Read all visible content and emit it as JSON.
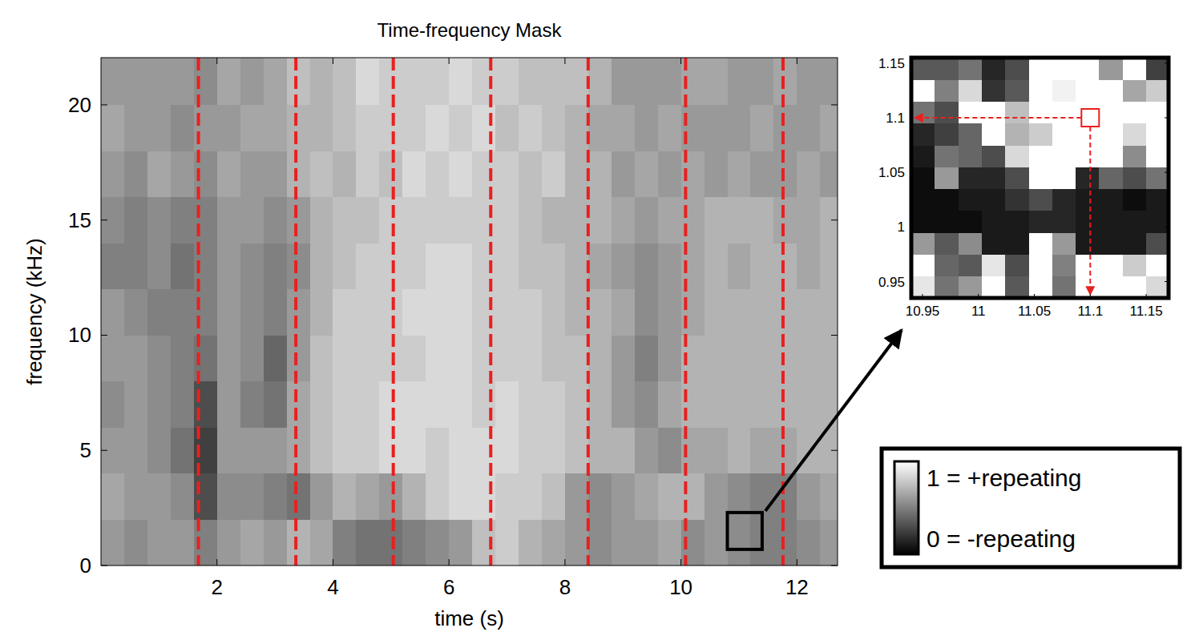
{
  "chart_data": {
    "type": "heatmap",
    "title": "Time-frequency Mask",
    "x_label": "time (s)",
    "y_label": "frequency (kHz)",
    "xlim": [
      0,
      12.7
    ],
    "ylim": [
      0,
      22.05
    ],
    "xticks": [
      2,
      4,
      6,
      8,
      10,
      12
    ],
    "yticks": [
      0,
      5,
      10,
      15,
      20
    ],
    "x_bins": [
      0,
      0.4,
      0.8,
      1.2,
      1.6,
      2,
      2.4,
      2.8,
      3.2,
      3.6,
      4,
      4.4,
      4.8,
      5.2,
      5.6,
      6,
      6.4,
      6.8,
      7.2,
      7.6,
      8,
      8.4,
      8.8,
      9.2,
      9.6,
      10,
      10.4,
      10.8,
      11.2,
      11.6,
      12,
      12.4,
      12.8
    ],
    "y_bins": [
      0,
      2,
      4,
      6,
      8,
      10,
      12,
      14,
      16,
      18,
      20,
      22.05
    ],
    "cells": [
      [
        0.6,
        0.55,
        0.6,
        0.6,
        0.5,
        0.6,
        0.65,
        0.6,
        0.7,
        0.65,
        0.5,
        0.45,
        0.45,
        0.5,
        0.55,
        0.6,
        0.75,
        0.8,
        0.7,
        0.65,
        0.6,
        0.55,
        0.6,
        0.6,
        0.65,
        0.55,
        0.6,
        0.55,
        0.5,
        0.5,
        0.55,
        0.6
      ],
      [
        0.65,
        0.6,
        0.6,
        0.55,
        0.3,
        0.55,
        0.55,
        0.5,
        0.45,
        0.6,
        0.7,
        0.65,
        0.6,
        0.7,
        0.8,
        0.85,
        0.85,
        0.8,
        0.8,
        0.75,
        0.6,
        0.55,
        0.6,
        0.65,
        0.7,
        0.7,
        0.6,
        0.55,
        0.5,
        0.5,
        0.6,
        0.65
      ],
      [
        0.6,
        0.6,
        0.55,
        0.45,
        0.25,
        0.6,
        0.6,
        0.6,
        0.65,
        0.75,
        0.8,
        0.8,
        0.85,
        0.85,
        0.8,
        0.85,
        0.85,
        0.85,
        0.8,
        0.8,
        0.75,
        0.7,
        0.7,
        0.6,
        0.55,
        0.65,
        0.65,
        0.7,
        0.65,
        0.65,
        0.7,
        0.7
      ],
      [
        0.55,
        0.6,
        0.55,
        0.5,
        0.3,
        0.6,
        0.5,
        0.45,
        0.65,
        0.75,
        0.8,
        0.8,
        0.85,
        0.85,
        0.85,
        0.85,
        0.8,
        0.85,
        0.8,
        0.8,
        0.75,
        0.7,
        0.6,
        0.55,
        0.65,
        0.7,
        0.7,
        0.7,
        0.7,
        0.7,
        0.7,
        0.7
      ],
      [
        0.6,
        0.6,
        0.55,
        0.5,
        0.45,
        0.6,
        0.55,
        0.4,
        0.6,
        0.75,
        0.8,
        0.8,
        0.8,
        0.8,
        0.85,
        0.85,
        0.8,
        0.8,
        0.8,
        0.75,
        0.75,
        0.7,
        0.6,
        0.5,
        0.6,
        0.7,
        0.7,
        0.7,
        0.7,
        0.7,
        0.7,
        0.7
      ],
      [
        0.6,
        0.55,
        0.5,
        0.5,
        0.5,
        0.6,
        0.55,
        0.5,
        0.6,
        0.7,
        0.8,
        0.8,
        0.8,
        0.85,
        0.85,
        0.85,
        0.8,
        0.8,
        0.8,
        0.75,
        0.7,
        0.7,
        0.65,
        0.55,
        0.6,
        0.65,
        0.7,
        0.7,
        0.7,
        0.7,
        0.7,
        0.7
      ],
      [
        0.5,
        0.5,
        0.55,
        0.45,
        0.5,
        0.6,
        0.55,
        0.5,
        0.55,
        0.7,
        0.75,
        0.8,
        0.8,
        0.8,
        0.85,
        0.85,
        0.8,
        0.8,
        0.75,
        0.75,
        0.7,
        0.65,
        0.6,
        0.55,
        0.6,
        0.65,
        0.7,
        0.65,
        0.7,
        0.7,
        0.65,
        0.7
      ],
      [
        0.55,
        0.5,
        0.55,
        0.5,
        0.5,
        0.6,
        0.6,
        0.55,
        0.6,
        0.7,
        0.75,
        0.75,
        0.8,
        0.8,
        0.8,
        0.8,
        0.8,
        0.8,
        0.75,
        0.7,
        0.7,
        0.7,
        0.65,
        0.6,
        0.65,
        0.65,
        0.7,
        0.7,
        0.7,
        0.65,
        0.65,
        0.7
      ],
      [
        0.6,
        0.55,
        0.65,
        0.6,
        0.55,
        0.65,
        0.6,
        0.6,
        0.7,
        0.75,
        0.7,
        0.8,
        0.75,
        0.85,
        0.8,
        0.85,
        0.8,
        0.8,
        0.75,
        0.8,
        0.7,
        0.7,
        0.6,
        0.65,
        0.6,
        0.65,
        0.6,
        0.65,
        0.6,
        0.6,
        0.65,
        0.6
      ],
      [
        0.65,
        0.6,
        0.6,
        0.55,
        0.6,
        0.6,
        0.65,
        0.65,
        0.7,
        0.7,
        0.75,
        0.8,
        0.8,
        0.8,
        0.85,
        0.8,
        0.85,
        0.75,
        0.8,
        0.75,
        0.7,
        0.65,
        0.65,
        0.6,
        0.65,
        0.6,
        0.6,
        0.6,
        0.65,
        0.6,
        0.6,
        0.65
      ],
      [
        0.6,
        0.6,
        0.6,
        0.6,
        0.55,
        0.65,
        0.6,
        0.65,
        0.75,
        0.7,
        0.75,
        0.85,
        0.8,
        0.8,
        0.8,
        0.85,
        0.8,
        0.8,
        0.75,
        0.75,
        0.75,
        0.7,
        0.6,
        0.6,
        0.6,
        0.65,
        0.65,
        0.6,
        0.6,
        0.65,
        0.6,
        0.6
      ]
    ],
    "marker_lines": {
      "x": [
        1.68,
        3.36,
        5.04,
        6.72,
        8.4,
        10.08,
        11.76
      ],
      "color": "#e8201f",
      "line_style": "dashed"
    },
    "zoom_box": {
      "x": [
        10.8,
        11.4
      ],
      "y": [
        0.7,
        2.3
      ]
    },
    "inset": {
      "type": "heatmap",
      "xlim": [
        10.94,
        11.17
      ],
      "ylim": [
        0.935,
        1.155
      ],
      "xticks": [
        10.95,
        11,
        11.05,
        11.1,
        11.15
      ],
      "yticks": [
        0.95,
        1,
        1.05,
        1.1,
        1.15
      ],
      "x_bins": [
        10.94,
        10.961,
        10.982,
        11.003,
        11.024,
        11.045,
        11.066,
        11.087,
        11.108,
        11.129,
        11.15,
        11.17
      ],
      "y_bins": [
        0.935,
        0.955,
        0.975,
        0.995,
        1.015,
        1.035,
        1.055,
        1.075,
        1.095,
        1.115,
        1.135,
        1.155
      ],
      "cells": [
        [
          0.9,
          0.45,
          0.6,
          1,
          0.35,
          1,
          0.45,
          1,
          1,
          1,
          0.85
        ],
        [
          1,
          0.4,
          0.35,
          0.9,
          0.3,
          1,
          0.5,
          1,
          1,
          0.8,
          1
        ],
        [
          0.6,
          0.35,
          0.55,
          0.1,
          0.1,
          1,
          0.6,
          0.1,
          0.1,
          0.1,
          0.3
        ],
        [
          0.05,
          0.05,
          0.05,
          0.1,
          0.1,
          0.15,
          0.15,
          0.1,
          0.1,
          0.1,
          0.1
        ],
        [
          0.05,
          0.05,
          0.1,
          0.1,
          0.2,
          0.3,
          0.15,
          0.1,
          0.1,
          0.05,
          0.1
        ],
        [
          0.05,
          0.6,
          0.15,
          0.15,
          0.3,
          1,
          1,
          0.15,
          0.4,
          0.3,
          0.45
        ],
        [
          0.1,
          0.45,
          0.4,
          0.3,
          0.85,
          1,
          1,
          1,
          1,
          0.55,
          1
        ],
        [
          0.15,
          0.25,
          0.4,
          1,
          0.7,
          0.8,
          1,
          1,
          1,
          0.85,
          1
        ],
        [
          0.45,
          0.3,
          1,
          1,
          0.75,
          1,
          1,
          1,
          1,
          1,
          1
        ],
        [
          1,
          0.5,
          0.85,
          0.2,
          0.35,
          1,
          0.95,
          1,
          1,
          0.65,
          0.8
        ],
        [
          0.35,
          0.35,
          0.45,
          0.15,
          0.3,
          1,
          1,
          1,
          0.6,
          1,
          0.25
        ]
      ],
      "highlight": {
        "x": 11.1,
        "y": 1.1,
        "color": "#e8201f",
        "line_style": "dashed"
      }
    },
    "colorbar": {
      "range": [
        0,
        1
      ],
      "ticks": [
        {
          "value": 1,
          "label": "1 = +repeating"
        },
        {
          "value": 0,
          "label": "0 = -repeating"
        }
      ]
    }
  }
}
